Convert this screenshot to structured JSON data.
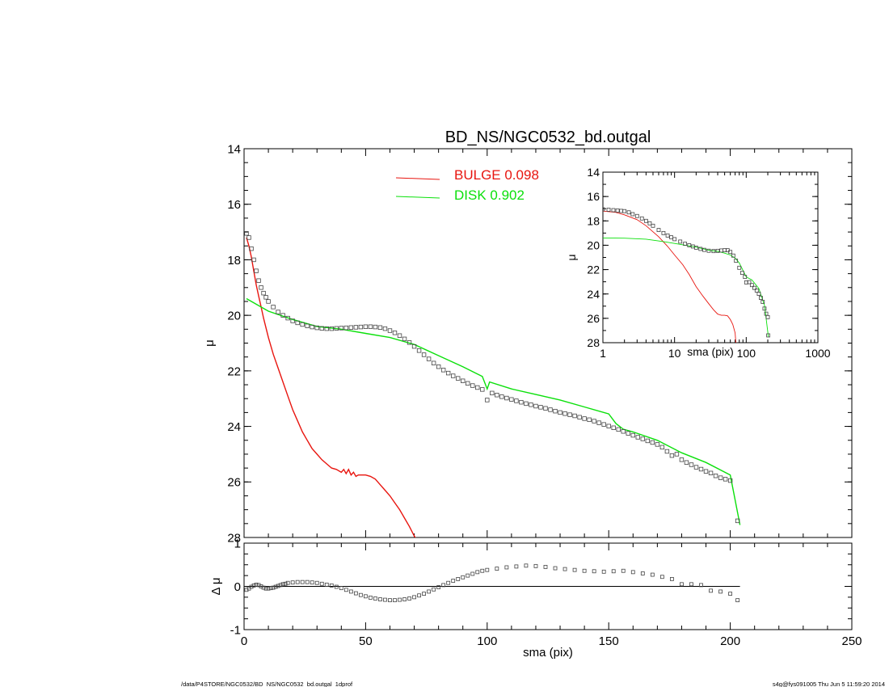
{
  "page": {
    "footer_left": "/data/P4STORE/NGC0532/BD_NS/NGC0532_bd.outgal_1dprof",
    "footer_right": "s4g@fys091005  Thu Jun  5 11:59:20 2014"
  },
  "colors": {
    "bulge": "#e8150f",
    "disk": "#0be00b",
    "points": "#444444",
    "axis": "#000000"
  },
  "chart_data": [
    {
      "id": "main",
      "type": "line",
      "title": "BD_NS/NGC0532_bd.outgal",
      "xlabel": "",
      "ylabel": "μ",
      "xlim": [
        0,
        250
      ],
      "ylim": [
        28,
        14
      ],
      "yreversed": true,
      "xticks": [
        0,
        50,
        100,
        150,
        200,
        250
      ],
      "yticks": [
        14,
        16,
        18,
        20,
        22,
        24,
        26,
        28
      ],
      "legend": [
        {
          "label": "BULGE  0.098",
          "color": "#e8150f"
        },
        {
          "label": "DISK  0.902",
          "color": "#0be00b"
        }
      ],
      "series": [
        {
          "name": "BULGE",
          "kind": "line",
          "color": "#e8150f",
          "x": [
            1,
            2,
            3,
            4,
            5,
            6,
            7,
            8,
            10,
            12,
            14,
            16,
            18,
            20,
            22,
            24,
            26,
            28,
            30,
            32,
            34,
            36,
            38,
            40,
            41,
            42,
            43,
            44,
            45,
            46,
            47,
            48,
            50,
            52,
            54,
            56,
            58,
            60,
            62,
            64,
            66,
            68,
            70,
            72
          ],
          "y": [
            17.2,
            17.5,
            17.9,
            18.4,
            18.9,
            19.3,
            19.7,
            20.1,
            20.8,
            21.4,
            21.9,
            22.4,
            22.9,
            23.4,
            23.8,
            24.2,
            24.5,
            24.8,
            25.0,
            25.2,
            25.35,
            25.5,
            25.55,
            25.65,
            25.55,
            25.7,
            25.55,
            25.75,
            25.65,
            25.8,
            25.75,
            25.75,
            25.75,
            25.8,
            25.9,
            26.1,
            26.3,
            26.5,
            26.75,
            27.0,
            27.3,
            27.6,
            27.95,
            28.2
          ]
        },
        {
          "name": "DISK",
          "kind": "line",
          "color": "#0be00b",
          "x": [
            1,
            10,
            20,
            30,
            40,
            50,
            60,
            70,
            80,
            90,
            98,
            100,
            101,
            110,
            120,
            130,
            140,
            150,
            153,
            156,
            160,
            170,
            180,
            190,
            200,
            204
          ],
          "y": [
            19.4,
            19.85,
            20.15,
            20.4,
            20.5,
            20.65,
            20.8,
            21.05,
            21.45,
            21.85,
            22.2,
            22.65,
            22.4,
            22.65,
            22.85,
            23.05,
            23.3,
            23.55,
            23.9,
            24.1,
            24.2,
            24.5,
            24.95,
            25.3,
            25.75,
            27.55
          ]
        },
        {
          "name": "DATA",
          "kind": "scatter",
          "color": "#444444",
          "x": [
            1,
            2,
            3,
            4,
            5,
            6,
            7,
            8,
            9,
            10,
            12,
            14,
            16,
            18,
            20,
            22,
            24,
            26,
            28,
            30,
            32,
            34,
            36,
            38,
            40,
            42,
            44,
            46,
            48,
            50,
            52,
            54,
            56,
            58,
            60,
            62,
            64,
            66,
            68,
            70,
            72,
            74,
            76,
            78,
            80,
            82,
            84,
            86,
            88,
            90,
            92,
            94,
            96,
            98,
            100,
            102,
            104,
            106,
            108,
            110,
            112,
            114,
            116,
            118,
            120,
            122,
            124,
            126,
            128,
            130,
            132,
            134,
            136,
            138,
            140,
            142,
            144,
            146,
            148,
            150,
            152,
            154,
            156,
            158,
            160,
            162,
            164,
            166,
            168,
            170,
            172,
            174,
            176,
            178,
            180,
            182,
            184,
            186,
            188,
            190,
            192,
            194,
            196,
            198,
            200,
            203
          ],
          "y": [
            17.05,
            17.2,
            17.6,
            18.0,
            18.4,
            18.75,
            19.0,
            19.2,
            19.35,
            19.5,
            19.7,
            19.88,
            20.0,
            20.1,
            20.2,
            20.27,
            20.33,
            20.38,
            20.42,
            20.45,
            20.47,
            20.48,
            20.48,
            20.47,
            20.46,
            20.45,
            20.44,
            20.43,
            20.42,
            20.41,
            20.41,
            20.42,
            20.44,
            20.48,
            20.55,
            20.63,
            20.73,
            20.85,
            20.98,
            21.12,
            21.27,
            21.42,
            21.57,
            21.72,
            21.85,
            21.97,
            22.08,
            22.18,
            22.27,
            22.36,
            22.45,
            22.53,
            22.6,
            22.67,
            23.05,
            22.8,
            22.87,
            22.93,
            22.98,
            23.03,
            23.08,
            23.13,
            23.18,
            23.22,
            23.27,
            23.31,
            23.35,
            23.4,
            23.45,
            23.5,
            23.54,
            23.58,
            23.62,
            23.67,
            23.72,
            23.76,
            23.81,
            23.87,
            23.93,
            23.99,
            24.05,
            24.11,
            24.18,
            24.25,
            24.32,
            24.39,
            24.45,
            24.52,
            24.58,
            24.65,
            24.75,
            24.9,
            25.05,
            25.0,
            25.2,
            25.3,
            25.38,
            25.47,
            25.54,
            25.62,
            25.68,
            25.78,
            25.85,
            25.9,
            25.95,
            27.4
          ]
        }
      ]
    },
    {
      "id": "residual",
      "type": "scatter",
      "xlabel": "sma (pix)",
      "ylabel": "Δ μ",
      "xlim": [
        0,
        250
      ],
      "ylim": [
        -1,
        1
      ],
      "xticks": [
        0,
        50,
        100,
        150,
        200,
        250
      ],
      "yticks": [
        -1,
        0,
        1
      ],
      "series": [
        {
          "name": "DELTA",
          "kind": "scatter",
          "color": "#444444",
          "x": [
            1,
            2,
            3,
            4,
            5,
            6,
            7,
            8,
            9,
            10,
            11,
            12,
            13,
            14,
            15,
            16,
            17,
            18,
            20,
            22,
            24,
            26,
            28,
            30,
            32,
            34,
            36,
            38,
            40,
            42,
            44,
            46,
            48,
            50,
            52,
            54,
            56,
            58,
            60,
            62,
            64,
            66,
            68,
            70,
            72,
            74,
            76,
            78,
            80,
            82,
            84,
            86,
            88,
            90,
            92,
            94,
            96,
            98,
            100,
            104,
            108,
            112,
            116,
            120,
            124,
            128,
            132,
            136,
            140,
            144,
            148,
            152,
            156,
            160,
            164,
            168,
            172,
            176,
            180,
            184,
            188,
            192,
            196,
            200,
            203
          ],
          "y": [
            -0.08,
            -0.05,
            -0.01,
            0.02,
            0.04,
            0.03,
            0.0,
            -0.03,
            -0.05,
            -0.05,
            -0.04,
            -0.03,
            -0.01,
            0.01,
            0.03,
            0.05,
            0.06,
            0.08,
            0.09,
            0.1,
            0.1,
            0.1,
            0.09,
            0.08,
            0.06,
            0.04,
            0.02,
            -0.01,
            -0.04,
            -0.08,
            -0.12,
            -0.16,
            -0.2,
            -0.23,
            -0.26,
            -0.28,
            -0.3,
            -0.31,
            -0.32,
            -0.32,
            -0.31,
            -0.3,
            -0.28,
            -0.25,
            -0.21,
            -0.17,
            -0.12,
            -0.07,
            -0.02,
            0.03,
            0.08,
            0.13,
            0.17,
            0.21,
            0.25,
            0.29,
            0.33,
            0.36,
            0.38,
            0.41,
            0.44,
            0.46,
            0.48,
            0.47,
            0.45,
            0.42,
            0.4,
            0.38,
            0.36,
            0.35,
            0.34,
            0.35,
            0.36,
            0.33,
            0.3,
            0.27,
            0.22,
            0.17,
            0.05,
            0.05,
            0.03,
            -0.1,
            -0.12,
            -0.17,
            -0.32
          ]
        }
      ]
    },
    {
      "id": "inset",
      "type": "line",
      "xlabel": "sma (pix)",
      "ylabel": "μ",
      "xscale": "log",
      "xlim": [
        1,
        1000
      ],
      "ylim": [
        28,
        14
      ],
      "yreversed": true,
      "xticks": [
        1,
        10,
        100,
        1000
      ],
      "xticklabels": [
        "1",
        "10",
        "100",
        "1000"
      ],
      "yticks": [
        14,
        16,
        18,
        20,
        22,
        24,
        26,
        28
      ],
      "series": [
        {
          "name": "BULGE",
          "kind": "line",
          "color": "#e8150f",
          "x": [
            1,
            1.5,
            2,
            3,
            4,
            5,
            6,
            8,
            10,
            13,
            16,
            20,
            25,
            30,
            35,
            40,
            45,
            50,
            55,
            60,
            65,
            70,
            72
          ],
          "y": [
            17.2,
            17.3,
            17.5,
            17.9,
            18.4,
            18.9,
            19.3,
            20.1,
            20.8,
            21.6,
            22.4,
            23.4,
            24.2,
            24.8,
            25.3,
            25.65,
            25.75,
            25.75,
            25.8,
            26.1,
            26.5,
            27.2,
            28.2
          ]
        },
        {
          "name": "DISK",
          "kind": "line",
          "color": "#0be00b",
          "x": [
            1,
            2,
            4,
            7,
            10,
            20,
            30,
            40,
            50,
            60,
            70,
            80,
            100,
            120,
            150,
            180,
            204
          ],
          "y": [
            19.4,
            19.42,
            19.5,
            19.7,
            19.85,
            20.15,
            20.4,
            20.5,
            20.65,
            20.8,
            21.05,
            21.45,
            22.6,
            22.85,
            23.55,
            24.95,
            27.55
          ]
        },
        {
          "name": "DATA",
          "kind": "scatter",
          "color": "#444444",
          "x": [
            1,
            1.2,
            1.4,
            1.6,
            1.8,
            2,
            2.3,
            2.6,
            3,
            3.5,
            4,
            4.5,
            5,
            6,
            7,
            8,
            9,
            10,
            12,
            14,
            16,
            18,
            20,
            23,
            26,
            30,
            35,
            40,
            45,
            50,
            55,
            60,
            66,
            72,
            80,
            88,
            96,
            100,
            110,
            120,
            130,
            140,
            150,
            160,
            170,
            180,
            190,
            200,
            203
          ],
          "y": [
            17.05,
            17.08,
            17.12,
            17.15,
            17.18,
            17.2,
            17.3,
            17.45,
            17.6,
            17.8,
            18.0,
            18.2,
            18.4,
            18.75,
            19.0,
            19.2,
            19.35,
            19.5,
            19.7,
            19.88,
            20.0,
            20.1,
            20.2,
            20.3,
            20.38,
            20.45,
            20.48,
            20.46,
            20.43,
            20.41,
            20.41,
            20.55,
            20.85,
            21.27,
            21.85,
            22.27,
            22.6,
            23.05,
            23.03,
            23.27,
            23.5,
            23.72,
            23.99,
            24.32,
            24.65,
            25.2,
            25.62,
            25.9,
            27.4
          ]
        }
      ]
    }
  ]
}
